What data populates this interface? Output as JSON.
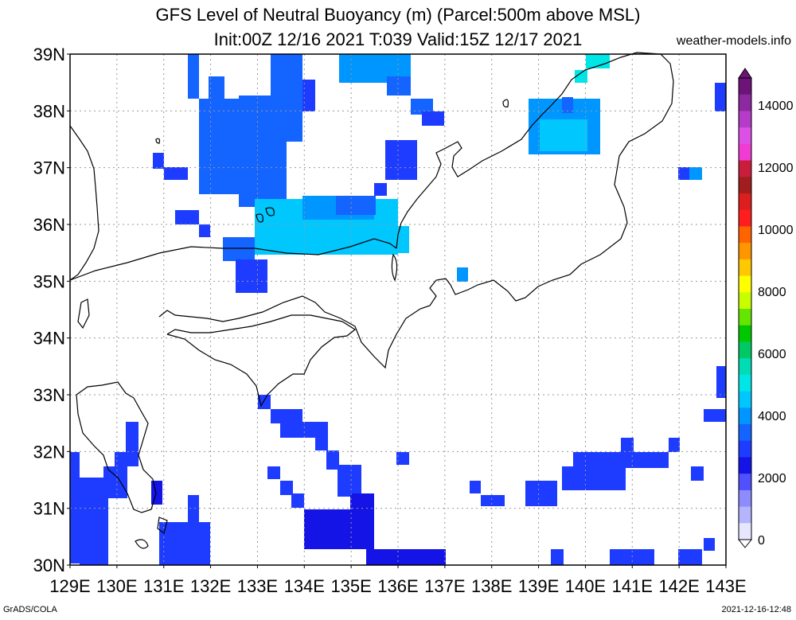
{
  "title": "GFS Level of Neutral Buoyancy (m) (Parcel:500m above MSL)",
  "subtitle": "Init:00Z 12/16 2021 T:039 Valid:15Z 12/17 2021",
  "site": "weather-models.info",
  "footer_left": "GrADS/COLA",
  "footer_right": "2021-12-16-12:48",
  "lat_labels": [
    "39N",
    "38N",
    "37N",
    "36N",
    "35N",
    "34N",
    "33N",
    "32N",
    "31N",
    "30N"
  ],
  "lon_labels": [
    "129E",
    "130E",
    "131E",
    "132E",
    "133E",
    "134E",
    "135E",
    "136E",
    "137E",
    "138E",
    "139E",
    "140E",
    "141E",
    "142E",
    "143E"
  ],
  "colorbar": {
    "labels": [
      "14000",
      "12000",
      "10000",
      "8000",
      "6000",
      "4000",
      "2000",
      "0"
    ],
    "colors": [
      "#6e1478",
      "#8c28a0",
      "#b43cc8",
      "#dc50e6",
      "#f03cd2",
      "#c81e3c",
      "#a01e1e",
      "#dc1e1e",
      "#ff1e1e",
      "#ff6400",
      "#ff9600",
      "#ffc800",
      "#ffff00",
      "#c8ff00",
      "#64e600",
      "#00c800",
      "#00c864",
      "#00dcb4",
      "#00e6e6",
      "#00c8ff",
      "#0096ff",
      "#1464ff",
      "#1e3cff",
      "#1414e6",
      "#5050ff",
      "#8c8cff",
      "#b4b4ff",
      "#e6e6ff"
    ]
  },
  "colors": {
    "c1": "#1414e6",
    "c2": "#1e3cff",
    "c3": "#1464ff",
    "c4": "#0096ff",
    "c5": "#00c8ff",
    "c6": "#00e6e6"
  }
}
